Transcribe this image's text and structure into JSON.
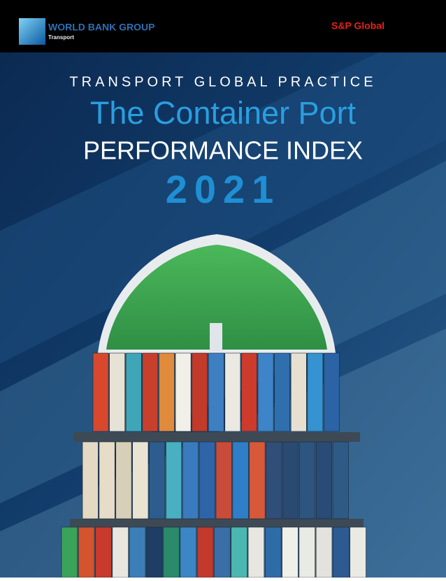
{
  "header": {
    "org": "WORLD BANK GROUP",
    "unit": "Transport",
    "partner": "S&P Global"
  },
  "cover": {
    "kicker": "TRANSPORT GLOBAL PRACTICE",
    "title_line1": "The Container Port",
    "title_line2": "PERFORMANCE INDEX",
    "year": "2021"
  }
}
